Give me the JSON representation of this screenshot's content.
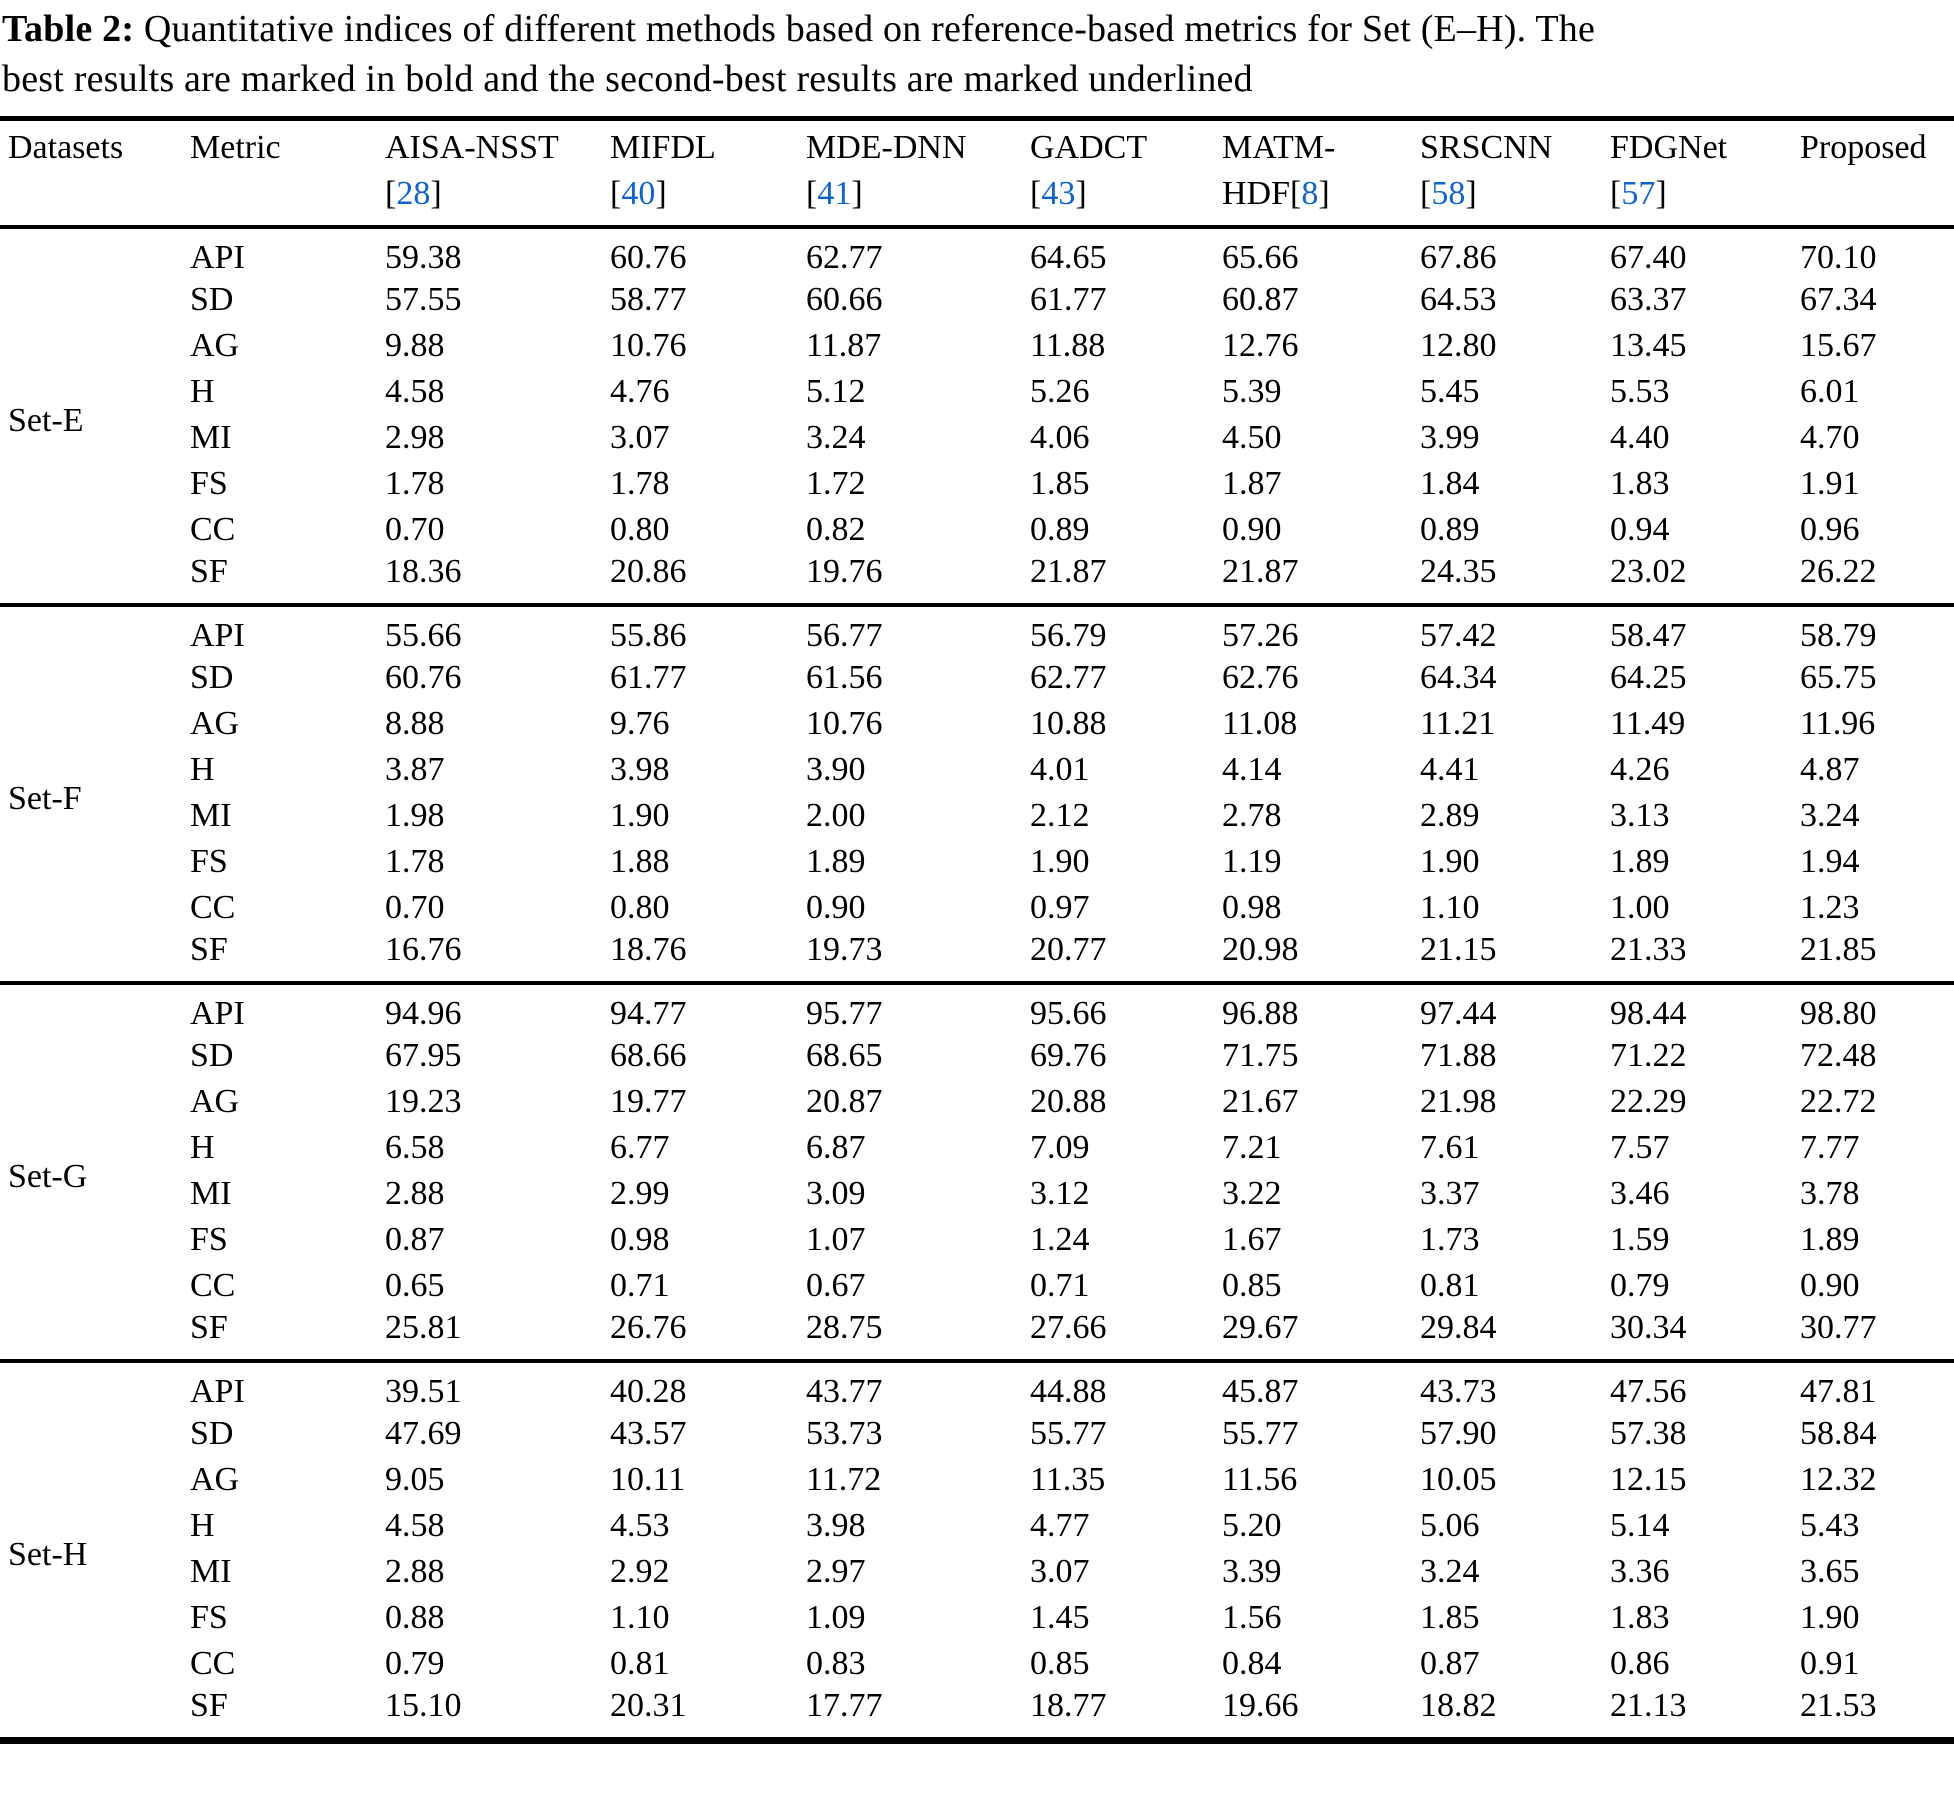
{
  "caption": {
    "label": "Table 2:",
    "line1": " Quantitative indices of different methods based on reference-based metrics for Set (E–H). The",
    "line2": "best results are marked in bold and the second-best results are marked underlined"
  },
  "colors": {
    "text": "#000000",
    "background": "#ffffff",
    "citation_link": "#1164c8",
    "rule": "#000000"
  },
  "table": {
    "col1_header": "Datasets",
    "col2_header": "Metric",
    "cite_open": "[",
    "cite_close": "]",
    "method_columns": [
      {
        "name": "AISA-NSST",
        "cite_prefix": "",
        "cite": "28"
      },
      {
        "name": "MIFDL",
        "cite_prefix": "",
        "cite": "40"
      },
      {
        "name": "MDE-DNN",
        "cite_prefix": "",
        "cite": "41"
      },
      {
        "name": "GADCT",
        "cite_prefix": "",
        "cite": "43"
      },
      {
        "name": "MATM-",
        "cite_prefix": "HDF",
        "cite": "8"
      },
      {
        "name": "SRSCNN",
        "cite_prefix": "",
        "cite": "58"
      },
      {
        "name": "FDGNet",
        "cite_prefix": "",
        "cite": "57"
      },
      {
        "name": "Proposed",
        "cite_prefix": "",
        "cite": null
      }
    ],
    "metrics": [
      "API",
      "SD",
      "AG",
      "H",
      "MI",
      "FS",
      "CC",
      "SF"
    ],
    "blocks": [
      {
        "dataset": "Set-E",
        "rows": [
          [
            "59.38",
            "60.76",
            "62.77",
            "64.65",
            "65.66",
            "67.86",
            "67.40",
            "70.10"
          ],
          [
            "57.55",
            "58.77",
            "60.66",
            "61.77",
            "60.87",
            "64.53",
            "63.37",
            "67.34"
          ],
          [
            "9.88",
            "10.76",
            "11.87",
            "11.88",
            "12.76",
            "12.80",
            "13.45",
            "15.67"
          ],
          [
            "4.58",
            "4.76",
            "5.12",
            "5.26",
            "5.39",
            "5.45",
            "5.53",
            "6.01"
          ],
          [
            "2.98",
            "3.07",
            "3.24",
            "4.06",
            "4.50",
            "3.99",
            "4.40",
            "4.70"
          ],
          [
            "1.78",
            "1.78",
            "1.72",
            "1.85",
            "1.87",
            "1.84",
            "1.83",
            "1.91"
          ],
          [
            "0.70",
            "0.80",
            "0.82",
            "0.89",
            "0.90",
            "0.89",
            "0.94",
            "0.96"
          ],
          [
            "18.36",
            "20.86",
            "19.76",
            "21.87",
            "21.87",
            "24.35",
            "23.02",
            "26.22"
          ]
        ]
      },
      {
        "dataset": "Set-F",
        "rows": [
          [
            "55.66",
            "55.86",
            "56.77",
            "56.79",
            "57.26",
            "57.42",
            "58.47",
            "58.79"
          ],
          [
            "60.76",
            "61.77",
            "61.56",
            "62.77",
            "62.76",
            "64.34",
            "64.25",
            "65.75"
          ],
          [
            "8.88",
            "9.76",
            "10.76",
            "10.88",
            "11.08",
            "11.21",
            "11.49",
            "11.96"
          ],
          [
            "3.87",
            "3.98",
            "3.90",
            "4.01",
            "4.14",
            "4.41",
            "4.26",
            "4.87"
          ],
          [
            "1.98",
            "1.90",
            "2.00",
            "2.12",
            "2.78",
            "2.89",
            "3.13",
            "3.24"
          ],
          [
            "1.78",
            "1.88",
            "1.89",
            "1.90",
            "1.19",
            "1.90",
            "1.89",
            "1.94"
          ],
          [
            "0.70",
            "0.80",
            "0.90",
            "0.97",
            "0.98",
            "1.10",
            "1.00",
            "1.23"
          ],
          [
            "16.76",
            "18.76",
            "19.73",
            "20.77",
            "20.98",
            "21.15",
            "21.33",
            "21.85"
          ]
        ]
      },
      {
        "dataset": "Set-G",
        "rows": [
          [
            "94.96",
            "94.77",
            "95.77",
            "95.66",
            "96.88",
            "97.44",
            "98.44",
            "98.80"
          ],
          [
            "67.95",
            "68.66",
            "68.65",
            "69.76",
            "71.75",
            "71.88",
            "71.22",
            "72.48"
          ],
          [
            "19.23",
            "19.77",
            "20.87",
            "20.88",
            "21.67",
            "21.98",
            "22.29",
            "22.72"
          ],
          [
            "6.58",
            "6.77",
            "6.87",
            "7.09",
            "7.21",
            "7.61",
            "7.57",
            "7.77"
          ],
          [
            "2.88",
            "2.99",
            "3.09",
            "3.12",
            "3.22",
            "3.37",
            "3.46",
            "3.78"
          ],
          [
            "0.87",
            "0.98",
            "1.07",
            "1.24",
            "1.67",
            "1.73",
            "1.59",
            "1.89"
          ],
          [
            "0.65",
            "0.71",
            "0.67",
            "0.71",
            "0.85",
            "0.81",
            "0.79",
            "0.90"
          ],
          [
            "25.81",
            "26.76",
            "28.75",
            "27.66",
            "29.67",
            "29.84",
            "30.34",
            "30.77"
          ]
        ]
      },
      {
        "dataset": "Set-H",
        "rows": [
          [
            "39.51",
            "40.28",
            "43.77",
            "44.88",
            "45.87",
            "43.73",
            "47.56",
            "47.81"
          ],
          [
            "47.69",
            "43.57",
            "53.73",
            "55.77",
            "55.77",
            "57.90",
            "57.38",
            "58.84"
          ],
          [
            "9.05",
            "10.11",
            "11.72",
            "11.35",
            "11.56",
            "10.05",
            "12.15",
            "12.32"
          ],
          [
            "4.58",
            "4.53",
            "3.98",
            "4.77",
            "5.20",
            "5.06",
            "5.14",
            "5.43"
          ],
          [
            "2.88",
            "2.92",
            "2.97",
            "3.07",
            "3.39",
            "3.24",
            "3.36",
            "3.65"
          ],
          [
            "0.88",
            "1.10",
            "1.09",
            "1.45",
            "1.56",
            "1.85",
            "1.83",
            "1.90"
          ],
          [
            "0.79",
            "0.81",
            "0.83",
            "0.85",
            "0.84",
            "0.87",
            "0.86",
            "0.91"
          ],
          [
            "15.10",
            "20.31",
            "17.77",
            "18.77",
            "19.66",
            "18.82",
            "21.13",
            "21.53"
          ]
        ]
      }
    ]
  }
}
